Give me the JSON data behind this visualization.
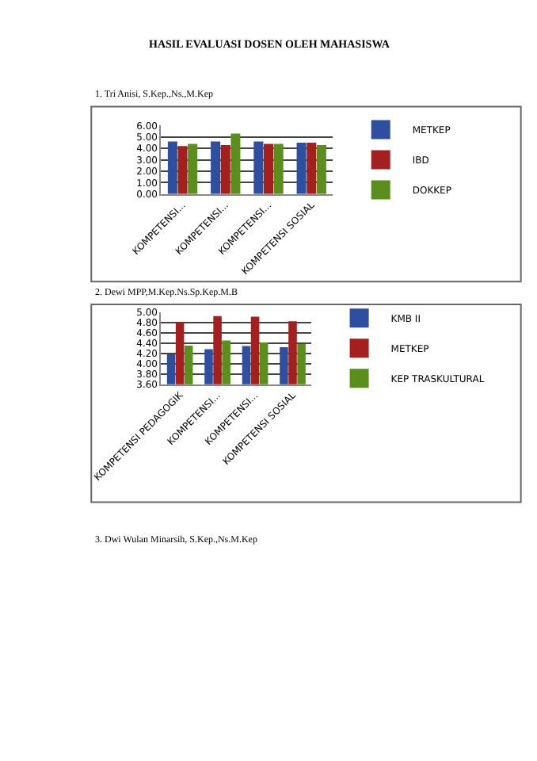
{
  "chart_data": [
    {
      "type": "bar",
      "title": "HASIL EVALUASI DOSEN OLEH MAHASISWA",
      "subtitle": "1. Tri Anisi, S.Kep.,Ns.,M.Kep",
      "categories": [
        "KOMPETENSI...",
        "KOMPETENSI...",
        "KOMPETENSI...",
        "KOMPETENSI SOSIAL"
      ],
      "series": [
        {
          "name": "METKEP",
          "color": "#2e4fa0",
          "values": [
            4.6,
            4.6,
            4.6,
            4.5
          ]
        },
        {
          "name": "IBD",
          "color": "#a3201f",
          "values": [
            4.2,
            4.3,
            4.4,
            4.5
          ]
        },
        {
          "name": "DOKKEP",
          "color": "#5a8f1e",
          "values": [
            4.4,
            5.3,
            4.4,
            4.3
          ]
        }
      ],
      "ylim": [
        0,
        6
      ],
      "yticks": [
        {
          "value": 0,
          "label": "0.00"
        },
        {
          "value": 1,
          "label": "1.00"
        },
        {
          "value": 2,
          "label": "2.00"
        },
        {
          "value": 3,
          "label": "3.00"
        },
        {
          "value": 4,
          "label": "4.00"
        },
        {
          "value": 5,
          "label": "5.00"
        },
        {
          "value": 6,
          "label": "6.00"
        }
      ],
      "grid": "y",
      "legend": "right"
    },
    {
      "type": "bar",
      "title": "2. Dewi MPP,M.Kep.Ns.Sp.Kep.M.B",
      "categories": [
        "KOMPETENSI PEDAGOGIK",
        "KOMPETENSI...",
        "KOMPETENSI...",
        "KOMPETENSI SOSIAL"
      ],
      "series": [
        {
          "name": "KMB II",
          "color": "#2e4fa0",
          "values": [
            4.18,
            4.28,
            4.34,
            4.32
          ]
        },
        {
          "name": "METKEP",
          "color": "#a3201f",
          "values": [
            4.8,
            4.92,
            4.91,
            4.82
          ]
        },
        {
          "name": "KEP TRASKULTURAL",
          "color": "#5a8f1e",
          "values": [
            4.35,
            4.45,
            4.41,
            4.38
          ]
        }
      ],
      "ylim": [
        3.6,
        5.0
      ],
      "yticks": [
        {
          "value": 3.6,
          "label": "3.60"
        },
        {
          "value": 3.8,
          "label": "3.80"
        },
        {
          "value": 4.0,
          "label": "4.00"
        },
        {
          "value": 4.2,
          "label": "4.20"
        },
        {
          "value": 4.4,
          "label": "4.40"
        },
        {
          "value": 4.6,
          "label": "4.60"
        },
        {
          "value": 4.8,
          "label": "4.80"
        },
        {
          "value": 5.0,
          "label": "5.00"
        }
      ],
      "grid": "y",
      "legend": "right",
      "annotations": [
        "3. Dwi Wulan Minarsih, S.Kep.,Ns.M.Kep"
      ]
    }
  ]
}
